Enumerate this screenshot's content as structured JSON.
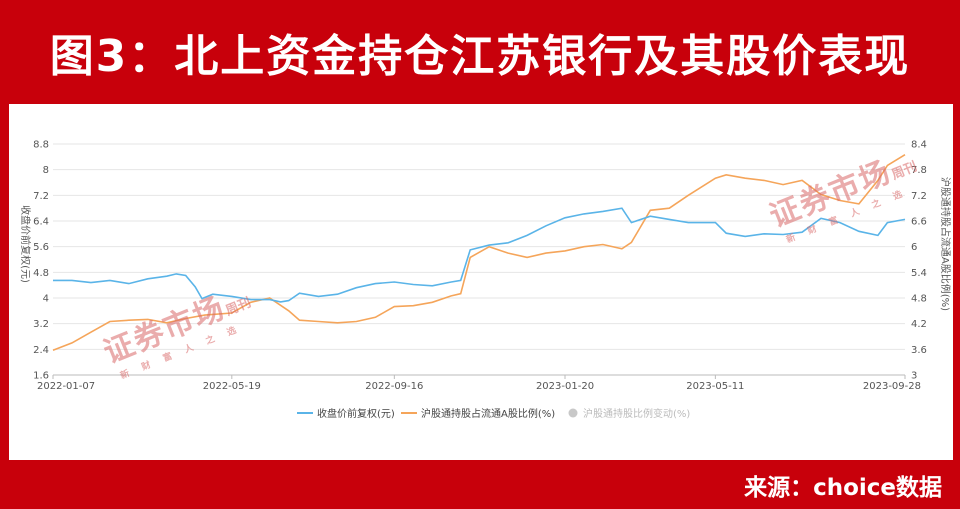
{
  "header": {
    "title": "图3：北上资金持仓江苏银行及其股价表现"
  },
  "footer": {
    "source": "来源：choice数据"
  },
  "watermark": {
    "main": "证券市场",
    "side": "周刊",
    "sub": "新财富人之选"
  },
  "colors": {
    "banner": "#c8000b",
    "price": "#5ab4e8",
    "holding": "#f5a55a",
    "change": "#c8c8c8"
  },
  "chart_data": {
    "type": "line",
    "x_ticks": [
      "2022-01-07",
      "2022-05-19",
      "2022-09-16",
      "2023-01-20",
      "2023-05-11",
      "2023-09-28"
    ],
    "x_range": [
      "2022-01-07",
      "2023-09-28"
    ],
    "ylabel": "收盘价前复权(元)",
    "ylabel_right": "沪股通持股占流通A股比例(%)",
    "y_ticks": [
      "8.8",
      "8",
      "7.2",
      "6.4",
      "5.6",
      "4.8",
      "4",
      "3.2",
      "2.4",
      "1.6"
    ],
    "ylim": [
      1.6,
      8.8
    ],
    "y2_ticks": [
      "8.4",
      "7.8",
      "7.2",
      "6.6",
      "6",
      "5.4",
      "4.8",
      "4.2",
      "3.6",
      "3"
    ],
    "y2lim": [
      3.0,
      8.4
    ],
    "legend": [
      "收盘价前复权(元)",
      "沪股通持股占流通A股比例(%)",
      "沪股通持股比例变动(%)"
    ],
    "legend_position": "bottom",
    "grid": true,
    "series": [
      {
        "name": "收盘价前复权(元)",
        "axis": "left",
        "points": [
          [
            "2022-01-07",
            4.55
          ],
          [
            "2022-01-21",
            4.55
          ],
          [
            "2022-02-04",
            4.48
          ],
          [
            "2022-02-18",
            4.55
          ],
          [
            "2022-03-04",
            4.45
          ],
          [
            "2022-03-18",
            4.6
          ],
          [
            "2022-04-01",
            4.68
          ],
          [
            "2022-04-08",
            4.75
          ],
          [
            "2022-04-15",
            4.7
          ],
          [
            "2022-04-22",
            4.35
          ],
          [
            "2022-04-27",
            3.98
          ],
          [
            "2022-05-05",
            4.12
          ],
          [
            "2022-05-19",
            4.05
          ],
          [
            "2022-06-02",
            3.95
          ],
          [
            "2022-06-16",
            3.95
          ],
          [
            "2022-06-24",
            3.88
          ],
          [
            "2022-06-30",
            3.92
          ],
          [
            "2022-07-08",
            4.15
          ],
          [
            "2022-07-22",
            4.05
          ],
          [
            "2022-08-05",
            4.12
          ],
          [
            "2022-08-19",
            4.32
          ],
          [
            "2022-09-02",
            4.45
          ],
          [
            "2022-09-16",
            4.5
          ],
          [
            "2022-09-30",
            4.42
          ],
          [
            "2022-10-14",
            4.38
          ],
          [
            "2022-10-28",
            4.5
          ],
          [
            "2022-11-04",
            4.55
          ],
          [
            "2022-11-11",
            5.5
          ],
          [
            "2022-11-25",
            5.65
          ],
          [
            "2022-12-09",
            5.72
          ],
          [
            "2022-12-23",
            5.95
          ],
          [
            "2023-01-06",
            6.25
          ],
          [
            "2023-01-20",
            6.5
          ],
          [
            "2023-02-03",
            6.62
          ],
          [
            "2023-02-17",
            6.7
          ],
          [
            "2023-03-03",
            6.8
          ],
          [
            "2023-03-10",
            6.35
          ],
          [
            "2023-03-24",
            6.55
          ],
          [
            "2023-04-07",
            6.45
          ],
          [
            "2023-04-21",
            6.35
          ],
          [
            "2023-05-11",
            6.35
          ],
          [
            "2023-05-19",
            6.02
          ],
          [
            "2023-06-02",
            5.92
          ],
          [
            "2023-06-16",
            6.0
          ],
          [
            "2023-06-30",
            5.98
          ],
          [
            "2023-07-14",
            6.05
          ],
          [
            "2023-07-28",
            6.48
          ],
          [
            "2023-08-11",
            6.35
          ],
          [
            "2023-08-25",
            6.08
          ],
          [
            "2023-09-08",
            5.95
          ],
          [
            "2023-09-15",
            6.35
          ],
          [
            "2023-09-28",
            6.45
          ]
        ]
      },
      {
        "name": "沪股通持股占流通A股比例(%)",
        "axis": "right",
        "points": [
          [
            "2022-01-07",
            3.58
          ],
          [
            "2022-01-21",
            3.75
          ],
          [
            "2022-02-04",
            4.0
          ],
          [
            "2022-02-18",
            4.25
          ],
          [
            "2022-03-04",
            4.28
          ],
          [
            "2022-03-18",
            4.3
          ],
          [
            "2022-04-01",
            4.22
          ],
          [
            "2022-04-15",
            4.32
          ],
          [
            "2022-04-29",
            4.4
          ],
          [
            "2022-05-19",
            4.45
          ],
          [
            "2022-06-02",
            4.7
          ],
          [
            "2022-06-16",
            4.8
          ],
          [
            "2022-06-30",
            4.5
          ],
          [
            "2022-07-08",
            4.28
          ],
          [
            "2022-07-22",
            4.25
          ],
          [
            "2022-08-05",
            4.22
          ],
          [
            "2022-08-19",
            4.25
          ],
          [
            "2022-09-02",
            4.35
          ],
          [
            "2022-09-16",
            4.6
          ],
          [
            "2022-09-30",
            4.62
          ],
          [
            "2022-10-14",
            4.7
          ],
          [
            "2022-10-28",
            4.85
          ],
          [
            "2022-11-04",
            4.9
          ],
          [
            "2022-11-11",
            5.75
          ],
          [
            "2022-11-25",
            6.0
          ],
          [
            "2022-12-09",
            5.85
          ],
          [
            "2022-12-23",
            5.75
          ],
          [
            "2023-01-06",
            5.85
          ],
          [
            "2023-01-20",
            5.9
          ],
          [
            "2023-02-03",
            6.0
          ],
          [
            "2023-02-17",
            6.05
          ],
          [
            "2023-03-03",
            5.95
          ],
          [
            "2023-03-10",
            6.1
          ],
          [
            "2023-03-24",
            6.85
          ],
          [
            "2023-04-07",
            6.9
          ],
          [
            "2023-04-21",
            7.2
          ],
          [
            "2023-05-11",
            7.6
          ],
          [
            "2023-05-19",
            7.68
          ],
          [
            "2023-06-02",
            7.6
          ],
          [
            "2023-06-16",
            7.55
          ],
          [
            "2023-06-30",
            7.45
          ],
          [
            "2023-07-14",
            7.55
          ],
          [
            "2023-07-28",
            7.22
          ],
          [
            "2023-08-11",
            7.08
          ],
          [
            "2023-08-25",
            7.0
          ],
          [
            "2023-09-08",
            7.55
          ],
          [
            "2023-09-15",
            7.9
          ],
          [
            "2023-09-28",
            8.15
          ]
        ]
      },
      {
        "name": "沪股通持股比例变动(%)",
        "axis": "right",
        "points": []
      }
    ]
  }
}
